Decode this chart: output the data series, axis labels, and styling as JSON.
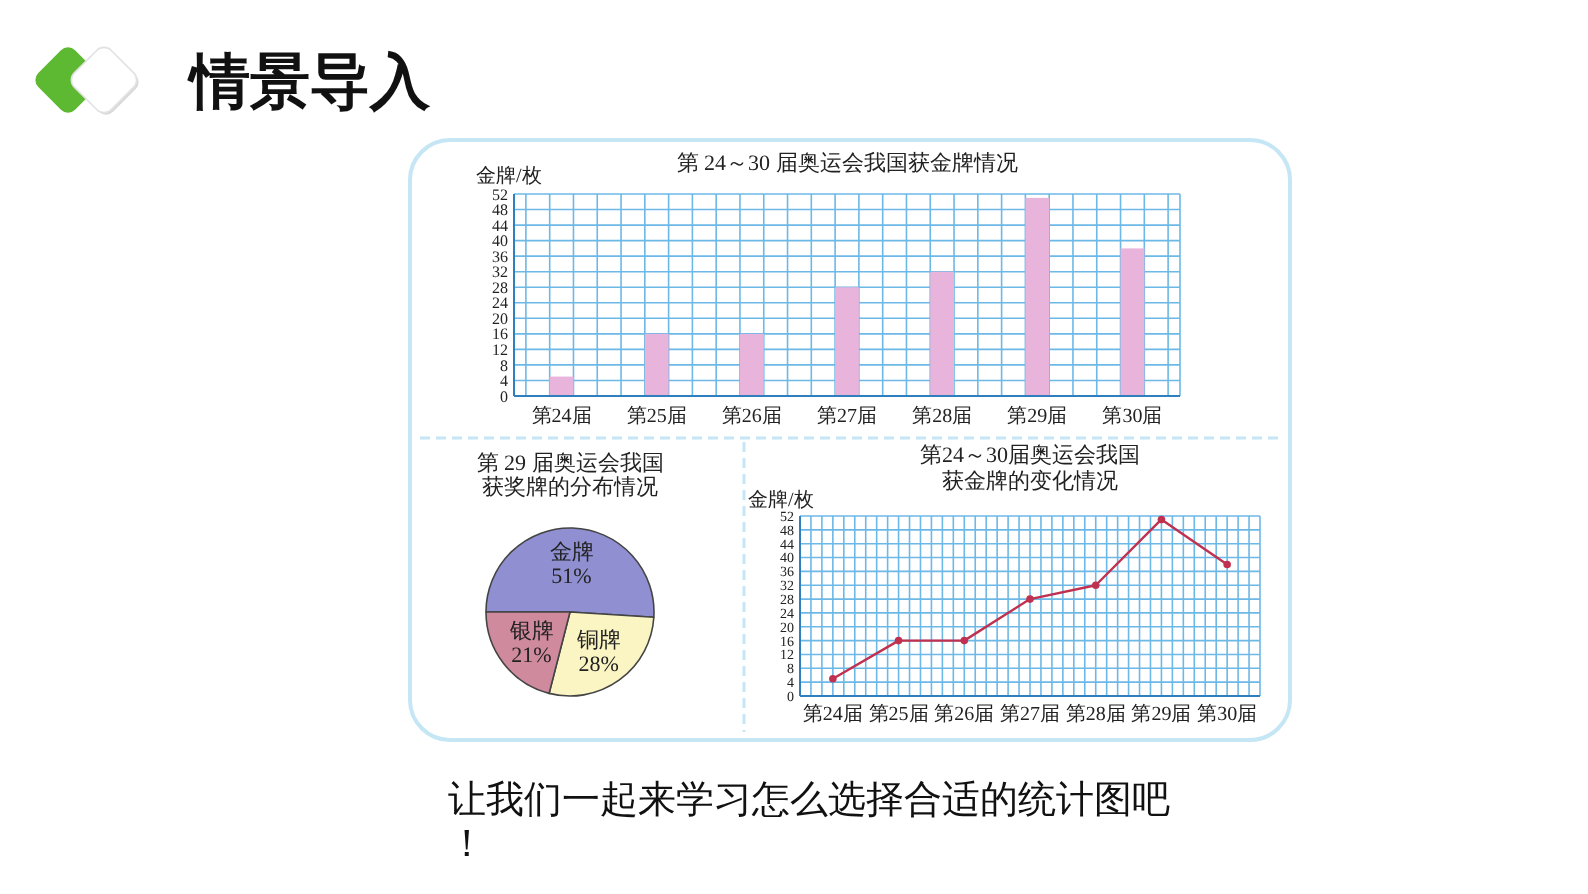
{
  "chart_data": [
    {
      "type": "other",
      "title": "情景导入"
    },
    {
      "type": "bar",
      "title": "第 24～30 届奥运会我国获金牌情况",
      "ylabel": "金牌/枚",
      "categories": [
        "第24届",
        "第25届",
        "第26届",
        "第27届",
        "第28届",
        "第29届",
        "第30届"
      ],
      "values": [
        5,
        16,
        16,
        28,
        32,
        51,
        38
      ],
      "color": "#e8b4dc",
      "ylim": [
        0,
        52
      ],
      "yticks": [
        0,
        4,
        8,
        12,
        16,
        20,
        24,
        28,
        32,
        36,
        40,
        44,
        48,
        52
      ],
      "grid": true
    },
    {
      "type": "pie",
      "title": "第 29 届奥运会我国获奖牌的分布情况",
      "categories": [
        "金牌",
        "铜牌",
        "银牌"
      ],
      "values": [
        51,
        28,
        21
      ],
      "colors": [
        "#8f8fd2",
        "#fbf5c3",
        "#d08a9e"
      ],
      "value_labels": [
        "51%",
        "28%",
        "21%"
      ]
    },
    {
      "type": "line",
      "title": "第24～30届奥运会我国获金牌的变化情况",
      "ylabel": "金牌/枚",
      "categories": [
        "第24届",
        "第25届",
        "第26届",
        "第27届",
        "第28届",
        "第29届",
        "第30届"
      ],
      "values": [
        5,
        16,
        16,
        28,
        32,
        51,
        38
      ],
      "color": "#c0304f",
      "marker": "circle",
      "ylim": [
        0,
        52
      ],
      "yticks": [
        0,
        4,
        8,
        12,
        16,
        20,
        24,
        28,
        32,
        36,
        40,
        44,
        48,
        52
      ],
      "grid": true
    },
    {
      "type": "other",
      "annotations": [
        "让我们一起来学习怎么选择合适的统计图吧！"
      ]
    }
  ]
}
